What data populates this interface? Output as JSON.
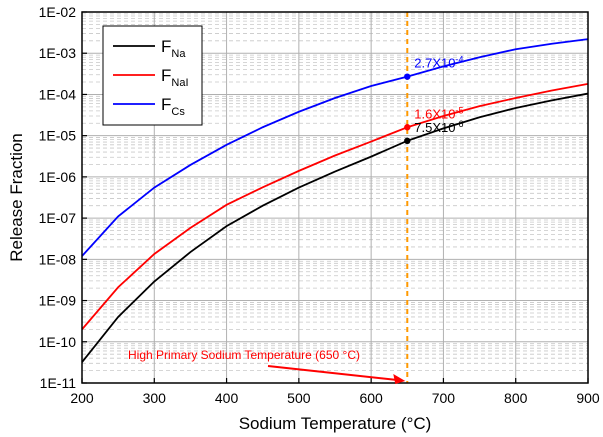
{
  "chart_data": {
    "type": "line",
    "title": "",
    "xlabel": "Sodium Temperature (°C)",
    "ylabel": "Release Fraction",
    "xlim": [
      200,
      900
    ],
    "ylim": [
      1e-11,
      0.01
    ],
    "yscale": "log",
    "grid": true,
    "legend_position": "top-left",
    "x_ticks": [
      "200",
      "300",
      "400",
      "500",
      "600",
      "700",
      "800",
      "900"
    ],
    "y_ticks": [
      "1E-11",
      "1E-10",
      "1E-09",
      "1E-08",
      "1E-07",
      "1E-06",
      "1E-05",
      "1E-04",
      "1E-03",
      "1E-02"
    ],
    "series": [
      {
        "name": "F",
        "subscript": "Na",
        "color": "#000000",
        "x": [
          200,
          250,
          300,
          350,
          400,
          450,
          500,
          550,
          600,
          650,
          700,
          750,
          800,
          850,
          900
        ],
        "y": [
          3.2e-11,
          4e-10,
          2.9e-09,
          1.5e-08,
          6.4e-08,
          2e-07,
          5.5e-07,
          1.35e-06,
          3.1e-06,
          7.5e-06,
          1.5e-05,
          2.8e-05,
          4.7e-05,
          7.2e-05,
          0.000105
        ]
      },
      {
        "name": "F",
        "subscript": "NaI",
        "color": "#ff0000",
        "x": [
          200,
          250,
          300,
          350,
          400,
          450,
          500,
          550,
          600,
          650,
          700,
          750,
          800,
          850,
          900
        ],
        "y": [
          2e-10,
          2.1e-09,
          1.35e-08,
          5.8e-08,
          2.1e-07,
          5.6e-07,
          1.4e-06,
          3.3e-06,
          7.2e-06,
          1.6e-05,
          3e-05,
          5.2e-05,
          8.2e-05,
          0.000125,
          0.00018
        ]
      },
      {
        "name": "F",
        "subscript": "Cs",
        "color": "#0000ff",
        "x": [
          200,
          250,
          300,
          350,
          400,
          450,
          500,
          550,
          600,
          650,
          700,
          750,
          800,
          850,
          900
        ],
        "y": [
          1.2e-08,
          1.1e-07,
          5.5e-07,
          1.95e-06,
          6e-06,
          1.6e-05,
          3.8e-05,
          8.2e-05,
          0.00016,
          0.00027,
          0.00048,
          0.0008,
          0.00125,
          0.0017,
          0.0022
        ]
      }
    ],
    "markers": [
      {
        "x": 650,
        "y": 0.00027,
        "color": "#0000ff",
        "label": "2.7X10",
        "exponent": "-4"
      },
      {
        "x": 650,
        "y": 1.6e-05,
        "color": "#ff0000",
        "label": "1.6X10",
        "exponent": "-5"
      },
      {
        "x": 650,
        "y": 7.5e-06,
        "color": "#000000",
        "label": "7.5X10",
        "exponent": "-6"
      }
    ],
    "vertical_line": {
      "x": 650,
      "color": "#ff9900"
    },
    "annotations": [
      {
        "text": "High Primary Sodium Temperature (650 °C)",
        "color": "#ff0000"
      }
    ]
  }
}
